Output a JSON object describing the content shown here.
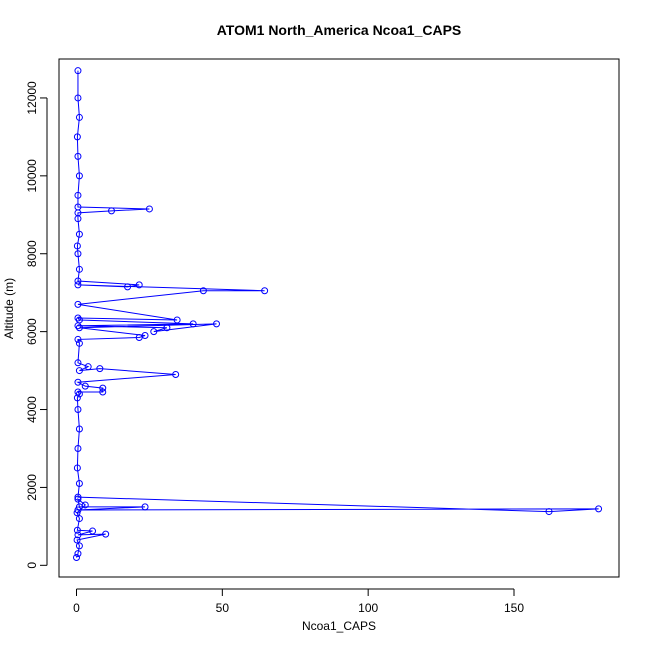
{
  "chart_data": {
    "type": "line",
    "title": "ATOM1 North_America Ncoa1_CAPS",
    "xlabel": "Ncoa1_CAPS",
    "ylabel": "Altitude (m)",
    "xlim": [
      -6,
      186
    ],
    "ylim": [
      -300,
      13000
    ],
    "x_ticks": [
      0,
      50,
      100,
      150
    ],
    "y_ticks": [
      0,
      2000,
      4000,
      6000,
      8000,
      10000,
      12000
    ],
    "grid": false,
    "legend": "none",
    "markers": "open-circle",
    "series_color": "#0000ff",
    "series": [
      {
        "x": [
          0,
          0.5,
          1,
          0.2,
          10,
          0.5,
          5.5,
          0.3,
          1,
          0.2,
          3,
          0.5,
          1,
          23.5,
          0.5,
          179,
          162,
          0.5,
          1,
          0.3,
          0.5,
          1,
          0.5,
          0.3,
          1,
          0.5,
          9,
          9,
          3,
          0.5,
          34,
          8,
          1,
          4,
          0.5,
          1,
          0.5,
          21.5,
          23.5,
          1,
          48,
          26.5,
          31,
          0.5,
          40,
          1,
          0.5,
          34.5,
          0.5,
          43.5,
          64.5,
          0.5,
          17.5,
          21.5,
          0.5,
          1,
          0.5,
          0.3,
          1,
          0.5,
          0.5,
          12,
          25,
          0.5,
          0.5,
          1,
          0.5,
          0.3,
          1,
          0.5,
          0.5
        ],
        "y": [
          200,
          300,
          500,
          650,
          800,
          780,
          880,
          900,
          1200,
          1350,
          1550,
          1700,
          1500,
          1500,
          1420,
          1450,
          1380,
          1750,
          2100,
          2500,
          3000,
          3500,
          4000,
          4300,
          4400,
          4450,
          4450,
          4550,
          4600,
          4700,
          4900,
          5050,
          5000,
          5100,
          5200,
          5700,
          5800,
          5850,
          5900,
          6100,
          6200,
          6000,
          6100,
          6150,
          6200,
          6300,
          6350,
          6300,
          6700,
          7050,
          7050,
          7200,
          7150,
          7200,
          7300,
          7600,
          8000,
          8200,
          8500,
          8900,
          9050,
          9100,
          9150,
          9200,
          9500,
          10000,
          10500,
          11000,
          11500,
          12000,
          12700
        ]
      }
    ]
  }
}
